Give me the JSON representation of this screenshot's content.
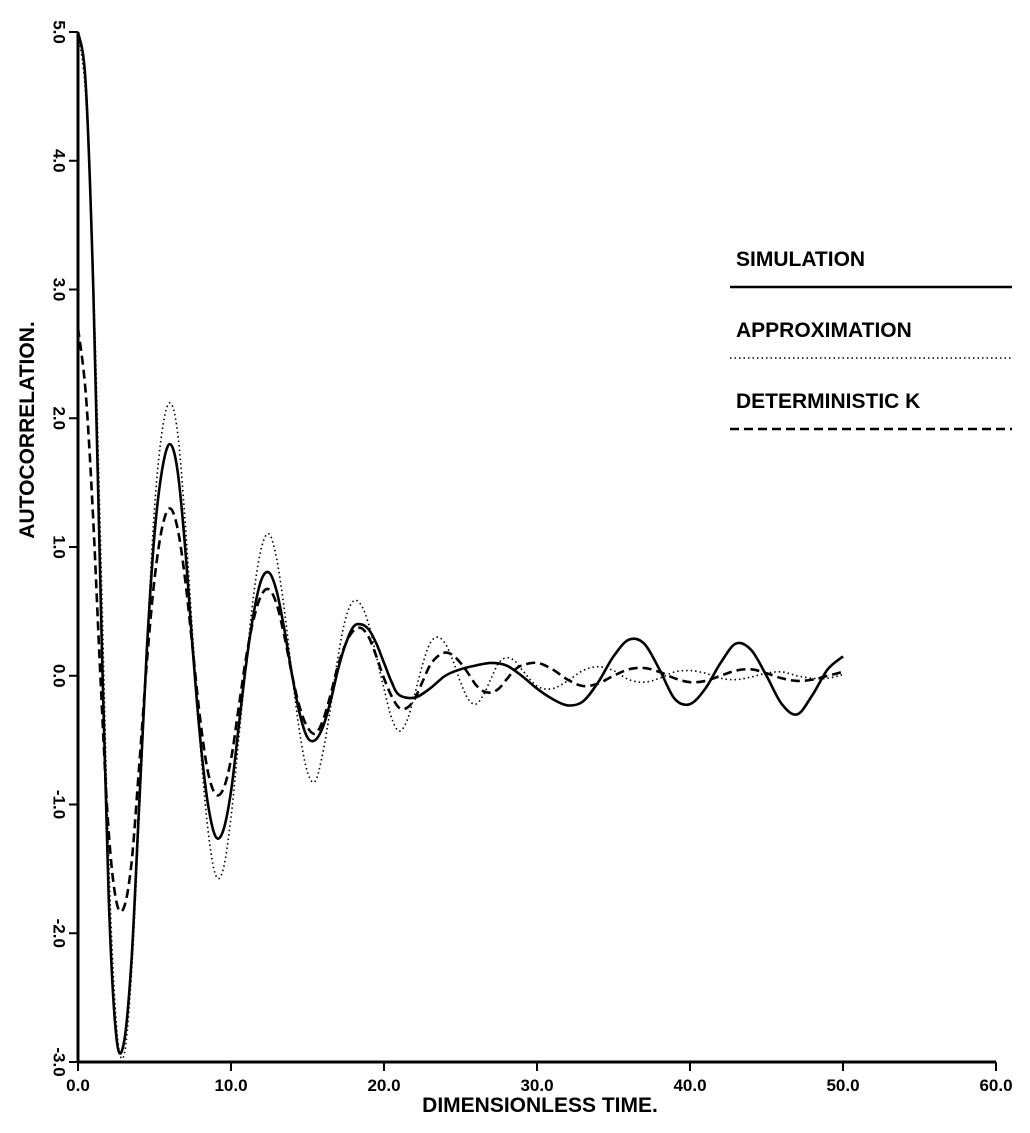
{
  "chart_data": {
    "type": "line",
    "title": "",
    "xlabel": "DIMENSIONLESS TIME.",
    "ylabel": "AUTOCORRELATION.",
    "xlim": [
      0,
      60
    ],
    "ylim": [
      -3,
      5
    ],
    "grid": false,
    "legend_position": "right",
    "x_ticks": [
      {
        "value": 0,
        "label": "0.0"
      },
      {
        "value": 10,
        "label": "10.0"
      },
      {
        "value": 20,
        "label": "20.0"
      },
      {
        "value": 30,
        "label": "30.0"
      },
      {
        "value": 40,
        "label": "40.0"
      },
      {
        "value": 50,
        "label": "50.0"
      },
      {
        "value": 60,
        "label": "60.0"
      }
    ],
    "y_ticks": [
      {
        "value": -3,
        "label": "-3.0"
      },
      {
        "value": -2,
        "label": "-2.0"
      },
      {
        "value": -1,
        "label": "-1.0"
      },
      {
        "value": 0,
        "label": "0.0"
      },
      {
        "value": 1,
        "label": "1.0"
      },
      {
        "value": 2,
        "label": "2.0"
      },
      {
        "value": 3,
        "label": "3.0"
      },
      {
        "value": 4,
        "label": "4.0"
      },
      {
        "value": 5,
        "label": "5.0"
      }
    ],
    "series": [
      {
        "name": "SIMULATION",
        "style": "solid",
        "x": [
          0,
          0.5,
          1,
          1.5,
          2,
          2.5,
          3,
          3.5,
          4,
          4.5,
          5,
          5.5,
          6,
          6.5,
          7,
          7.5,
          8,
          8.5,
          9,
          9.5,
          10,
          10.5,
          11,
          11.5,
          12,
          12.5,
          13,
          13.5,
          14,
          14.5,
          15,
          15.5,
          16,
          16.5,
          17,
          17.5,
          18,
          18.5,
          19,
          19.5,
          20,
          20.5,
          21,
          22,
          23,
          24,
          25,
          26,
          27,
          28,
          29,
          30,
          31,
          32,
          33,
          34,
          35,
          36,
          37,
          38,
          39,
          40,
          41,
          42,
          43,
          44,
          45,
          46,
          47,
          48,
          49,
          50
        ],
        "y": [
          5.0,
          4.6,
          3.0,
          0.5,
          -1.7,
          -2.8,
          -2.85,
          -2.2,
          -1.0,
          0.2,
          1.1,
          1.6,
          1.8,
          1.6,
          1.0,
          0.2,
          -0.5,
          -1.0,
          -1.25,
          -1.2,
          -0.9,
          -0.4,
          0.1,
          0.5,
          0.75,
          0.8,
          0.65,
          0.35,
          0.0,
          -0.3,
          -0.48,
          -0.5,
          -0.4,
          -0.2,
          0.05,
          0.25,
          0.38,
          0.4,
          0.36,
          0.25,
          0.1,
          -0.05,
          -0.15,
          -0.17,
          -0.1,
          0.0,
          0.05,
          0.08,
          0.1,
          0.08,
          0.0,
          -0.1,
          -0.18,
          -0.23,
          -0.2,
          -0.05,
          0.15,
          0.28,
          0.25,
          0.05,
          -0.18,
          -0.22,
          -0.1,
          0.1,
          0.25,
          0.2,
          0.0,
          -0.22,
          -0.3,
          -0.15,
          0.05,
          0.15
        ]
      },
      {
        "name": "APPROXIMATION",
        "style": "dotted",
        "x": [
          0,
          0.5,
          1,
          1.5,
          2,
          2.5,
          3,
          3.5,
          4,
          4.5,
          5,
          5.5,
          6,
          6.5,
          7,
          7.5,
          8,
          8.5,
          9,
          9.5,
          10,
          10.5,
          11,
          11.5,
          12,
          12.5,
          13,
          13.5,
          14,
          14.5,
          15,
          15.5,
          16,
          16.5,
          17,
          17.5,
          18,
          18.5,
          19,
          19.5,
          20,
          20.5,
          21,
          21.5,
          22,
          22.5,
          23,
          23.5,
          24,
          24.5,
          25,
          25.5,
          26,
          26.5,
          27,
          27.5,
          28,
          28.5,
          29,
          30,
          31,
          32,
          33,
          34,
          35,
          36,
          37,
          38,
          39,
          40,
          41,
          42,
          43,
          44,
          45,
          46,
          47,
          48,
          49,
          50
        ],
        "y": [
          5.0,
          4.5,
          3.1,
          0.9,
          -1.4,
          -2.7,
          -2.95,
          -2.3,
          -1.1,
          0.2,
          1.3,
          1.9,
          2.12,
          1.9,
          1.2,
          0.3,
          -0.55,
          -1.2,
          -1.55,
          -1.5,
          -1.1,
          -0.5,
          0.1,
          0.65,
          1.0,
          1.1,
          0.9,
          0.5,
          0.0,
          -0.45,
          -0.75,
          -0.82,
          -0.6,
          -0.25,
          0.15,
          0.45,
          0.58,
          0.55,
          0.4,
          0.15,
          -0.1,
          -0.33,
          -0.43,
          -0.35,
          -0.15,
          0.08,
          0.25,
          0.3,
          0.25,
          0.12,
          -0.05,
          -0.18,
          -0.22,
          -0.15,
          -0.02,
          0.1,
          0.14,
          0.12,
          0.05,
          -0.08,
          -0.1,
          -0.04,
          0.04,
          0.07,
          0.04,
          -0.03,
          -0.05,
          -0.02,
          0.03,
          0.04,
          0.02,
          -0.02,
          -0.03,
          -0.01,
          0.02,
          0.03,
          0.0,
          -0.02,
          -0.02,
          0.01
        ]
      },
      {
        "name": "DETERMINISTIC K",
        "style": "dashed",
        "x": [
          0,
          0.5,
          1,
          1.5,
          2,
          2.5,
          3,
          3.5,
          4,
          4.5,
          5,
          5.5,
          6,
          6.5,
          7,
          7.5,
          8,
          8.5,
          9,
          9.5,
          10,
          10.5,
          11,
          11.5,
          12,
          12.5,
          13,
          13.5,
          14,
          14.5,
          15,
          15.5,
          16,
          16.5,
          17,
          17.5,
          18,
          18.5,
          19,
          19.5,
          20,
          20.5,
          21,
          21.5,
          22,
          22.5,
          23,
          23.5,
          24,
          24.5,
          25,
          25.5,
          26,
          26.5,
          27,
          27.5,
          28,
          28.5,
          29,
          30,
          31,
          32,
          33,
          34,
          35,
          36,
          37,
          38,
          39,
          40,
          41,
          42,
          43,
          44,
          45,
          46,
          47,
          48,
          49,
          50
        ],
        "y": [
          2.7,
          2.2,
          1.2,
          -0.1,
          -1.2,
          -1.75,
          -1.8,
          -1.45,
          -0.7,
          0.1,
          0.75,
          1.15,
          1.3,
          1.15,
          0.75,
          0.2,
          -0.35,
          -0.75,
          -0.92,
          -0.88,
          -0.65,
          -0.25,
          0.15,
          0.45,
          0.63,
          0.67,
          0.55,
          0.3,
          0.0,
          -0.25,
          -0.4,
          -0.45,
          -0.35,
          -0.15,
          0.08,
          0.25,
          0.35,
          0.37,
          0.3,
          0.15,
          -0.02,
          -0.16,
          -0.25,
          -0.25,
          -0.18,
          -0.05,
          0.08,
          0.15,
          0.18,
          0.16,
          0.1,
          0.02,
          -0.07,
          -0.12,
          -0.13,
          -0.1,
          -0.03,
          0.04,
          0.08,
          0.1,
          0.05,
          -0.03,
          -0.08,
          -0.06,
          0.0,
          0.05,
          0.06,
          0.03,
          -0.02,
          -0.05,
          -0.04,
          0.0,
          0.04,
          0.05,
          0.02,
          -0.02,
          -0.04,
          -0.03,
          0.0,
          0.03
        ]
      }
    ]
  }
}
